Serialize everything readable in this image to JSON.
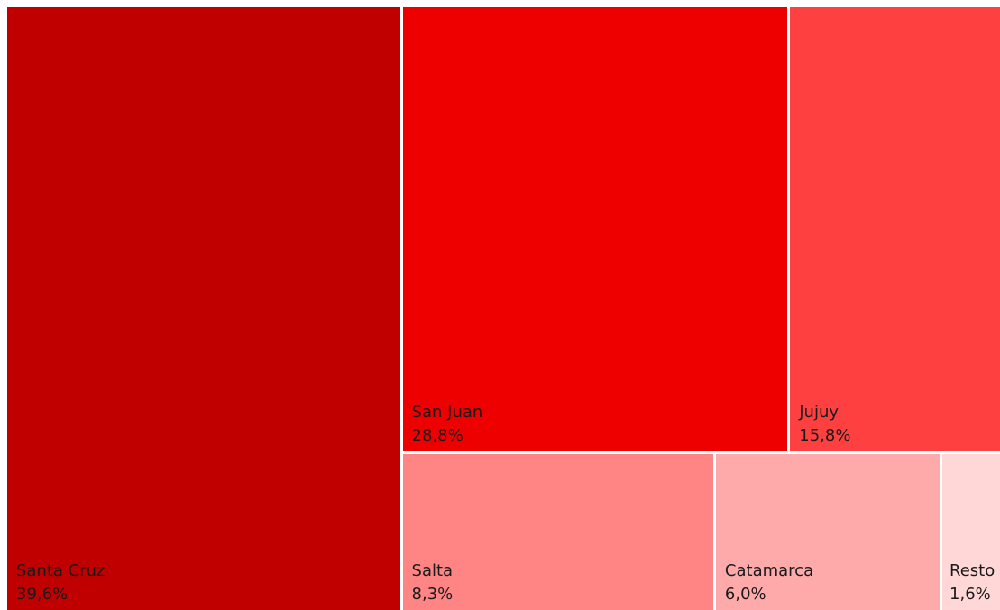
{
  "chart_data": {
    "type": "treemap",
    "items": [
      {
        "name": "Santa Cruz",
        "value": 39.6,
        "label": "39,6%",
        "color": "#c00000"
      },
      {
        "name": "San Juan",
        "value": 28.8,
        "label": "28,8%",
        "color": "#ee0000"
      },
      {
        "name": "Jujuy",
        "value": 15.8,
        "label": "15,8%",
        "color": "#ff4040"
      },
      {
        "name": "Salta",
        "value": 8.3,
        "label": "8,3%",
        "color": "#ff8585"
      },
      {
        "name": "Catamarca",
        "value": 6.0,
        "label": "6,0%",
        "color": "#ffaaaa"
      },
      {
        "name": "Resto",
        "value": 1.6,
        "label": "1,6%",
        "color": "#ffd7d7"
      }
    ]
  }
}
